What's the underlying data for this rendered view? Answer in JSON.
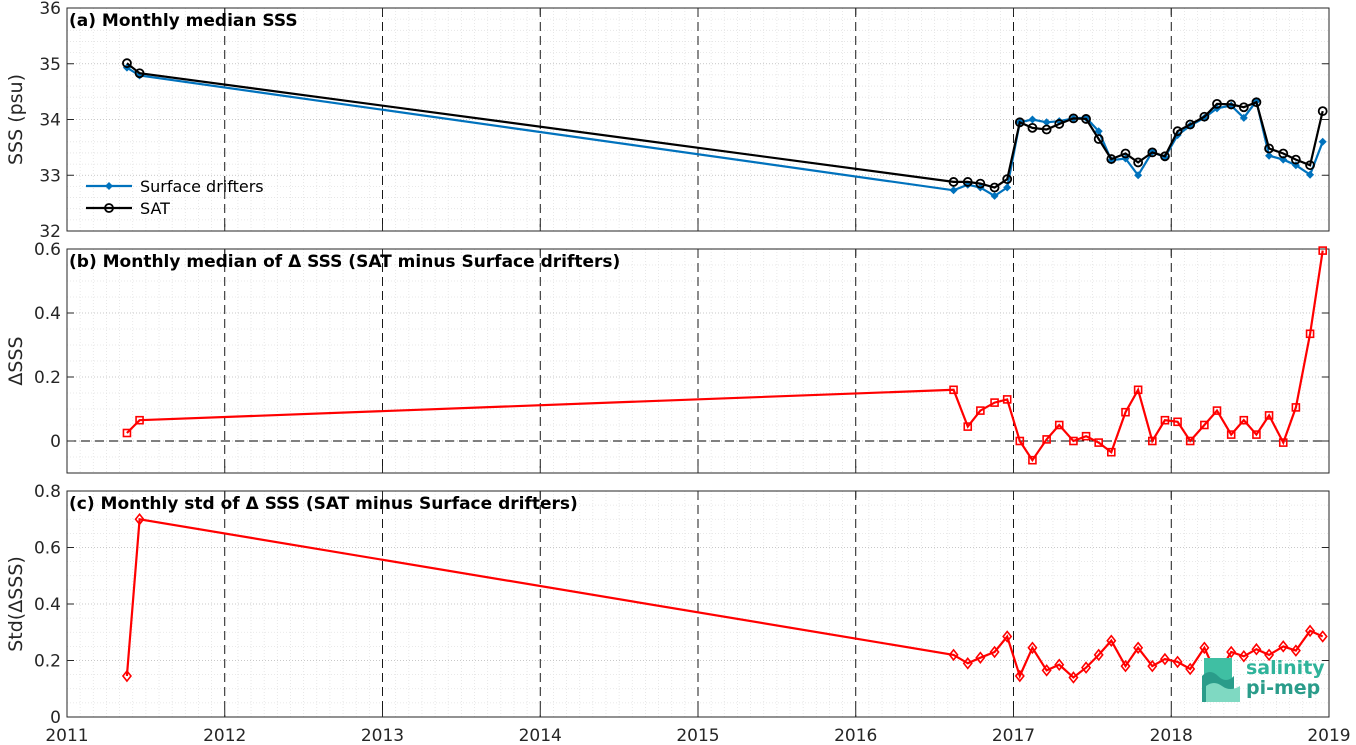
{
  "chart_data": [
    {
      "type": "line",
      "title": "(a) Monthly median SSS",
      "xlabel": "",
      "ylabel": "SSS (psu)",
      "xlim": [
        2011,
        2019
      ],
      "ylim": [
        32,
        36
      ],
      "yticks": [
        32,
        33,
        34,
        35,
        36
      ],
      "grid": true,
      "legend_position": "left",
      "series": [
        {
          "name": "Surface drifters",
          "color": "#0072bd",
          "marker": "dot",
          "x": [
            2011.38,
            2011.46,
            2016.62,
            2016.71,
            2016.79,
            2016.88,
            2016.96,
            2017.04,
            2017.12,
            2017.21,
            2017.29,
            2017.38,
            2017.46,
            2017.54,
            2017.62,
            2017.71,
            2017.79,
            2017.88,
            2017.96,
            2018.04,
            2018.12,
            2018.21,
            2018.29,
            2018.38,
            2018.46,
            2018.54,
            2018.62,
            2018.71,
            2018.79,
            2018.88,
            2018.96
          ],
          "values": [
            34.93,
            34.79,
            32.73,
            32.83,
            32.78,
            32.63,
            32.78,
            33.95,
            34.0,
            33.95,
            33.97,
            34.02,
            34.03,
            33.79,
            33.27,
            33.3,
            33.0,
            33.42,
            33.32,
            33.72,
            33.89,
            34.03,
            34.2,
            34.25,
            34.03,
            34.33,
            33.35,
            33.28,
            33.18,
            33.01,
            33.6
          ]
        },
        {
          "name": "SAT",
          "color": "#000000",
          "marker": "circle",
          "x": [
            2011.38,
            2011.46,
            2016.62,
            2016.71,
            2016.79,
            2016.88,
            2016.96,
            2017.04,
            2017.12,
            2017.21,
            2017.29,
            2017.38,
            2017.46,
            2017.54,
            2017.62,
            2017.71,
            2017.79,
            2017.88,
            2017.96,
            2018.04,
            2018.12,
            2018.21,
            2018.29,
            2018.38,
            2018.46,
            2018.54,
            2018.62,
            2018.71,
            2018.79,
            2018.88,
            2018.96
          ],
          "values": [
            35.01,
            34.83,
            32.88,
            32.88,
            32.85,
            32.78,
            32.93,
            33.95,
            33.85,
            33.82,
            33.92,
            34.02,
            34.01,
            33.65,
            33.29,
            33.39,
            33.23,
            33.41,
            33.34,
            33.79,
            33.91,
            34.05,
            34.28,
            34.27,
            34.22,
            34.31,
            33.48,
            33.39,
            33.28,
            33.18,
            34.15
          ]
        }
      ]
    },
    {
      "type": "line",
      "title": "(b) Monthly median of Δ SSS (SAT minus Surface drifters)",
      "xlabel": "",
      "ylabel": "ΔSSS",
      "xlim": [
        2011,
        2019
      ],
      "ylim": [
        -0.1,
        0.6
      ],
      "yticks": [
        0,
        0.2,
        0.4,
        0.6
      ],
      "grid": true,
      "series": [
        {
          "color": "#ff0000",
          "marker": "square",
          "x": [
            2011.38,
            2011.46,
            2016.62,
            2016.71,
            2016.79,
            2016.88,
            2016.96,
            2017.04,
            2017.12,
            2017.21,
            2017.29,
            2017.38,
            2017.46,
            2017.54,
            2017.62,
            2017.71,
            2017.79,
            2017.88,
            2017.96,
            2018.04,
            2018.12,
            2018.21,
            2018.29,
            2018.38,
            2018.46,
            2018.54,
            2018.62,
            2018.71,
            2018.79,
            2018.88,
            2018.96
          ],
          "values": [
            0.025,
            0.065,
            0.16,
            0.045,
            0.095,
            0.12,
            0.13,
            0.0,
            -0.06,
            0.005,
            0.05,
            0.0,
            0.015,
            -0.005,
            -0.035,
            0.09,
            0.16,
            0.0,
            0.065,
            0.06,
            0.0,
            0.05,
            0.095,
            0.02,
            0.065,
            0.02,
            0.08,
            -0.005,
            0.105,
            0.335,
            0.595
          ]
        }
      ]
    },
    {
      "type": "line",
      "title": "(c) Monthly std of Δ SSS (SAT minus Surface drifters)",
      "xlabel": "",
      "ylabel": "Std(ΔSSS)",
      "xlim": [
        2011,
        2019
      ],
      "ylim": [
        0,
        0.8
      ],
      "yticks": [
        0,
        0.2,
        0.4,
        0.6,
        0.8
      ],
      "xticks": [
        "2011",
        "2012",
        "2013",
        "2014",
        "2015",
        "2016",
        "2017",
        "2018",
        "2019"
      ],
      "grid": true,
      "series": [
        {
          "color": "#ff0000",
          "marker": "diamond",
          "x": [
            2011.38,
            2011.46,
            2016.62,
            2016.71,
            2016.79,
            2016.88,
            2016.96,
            2017.04,
            2017.12,
            2017.21,
            2017.29,
            2017.38,
            2017.46,
            2017.54,
            2017.62,
            2017.71,
            2017.79,
            2017.88,
            2017.96,
            2018.04,
            2018.12,
            2018.21,
            2018.29,
            2018.38,
            2018.46,
            2018.54,
            2018.62,
            2018.71,
            2018.79,
            2018.88,
            2018.96
          ],
          "values": [
            0.145,
            0.7,
            0.22,
            0.19,
            0.21,
            0.23,
            0.285,
            0.145,
            0.245,
            0.165,
            0.185,
            0.14,
            0.175,
            0.22,
            0.27,
            0.18,
            0.245,
            0.18,
            0.205,
            0.195,
            0.17,
            0.245,
            0.145,
            0.23,
            0.215,
            0.24,
            0.22,
            0.25,
            0.235,
            0.305,
            0.285
          ]
        }
      ]
    }
  ],
  "logo": {
    "line1": "salinity",
    "line2": "pi-mep"
  }
}
